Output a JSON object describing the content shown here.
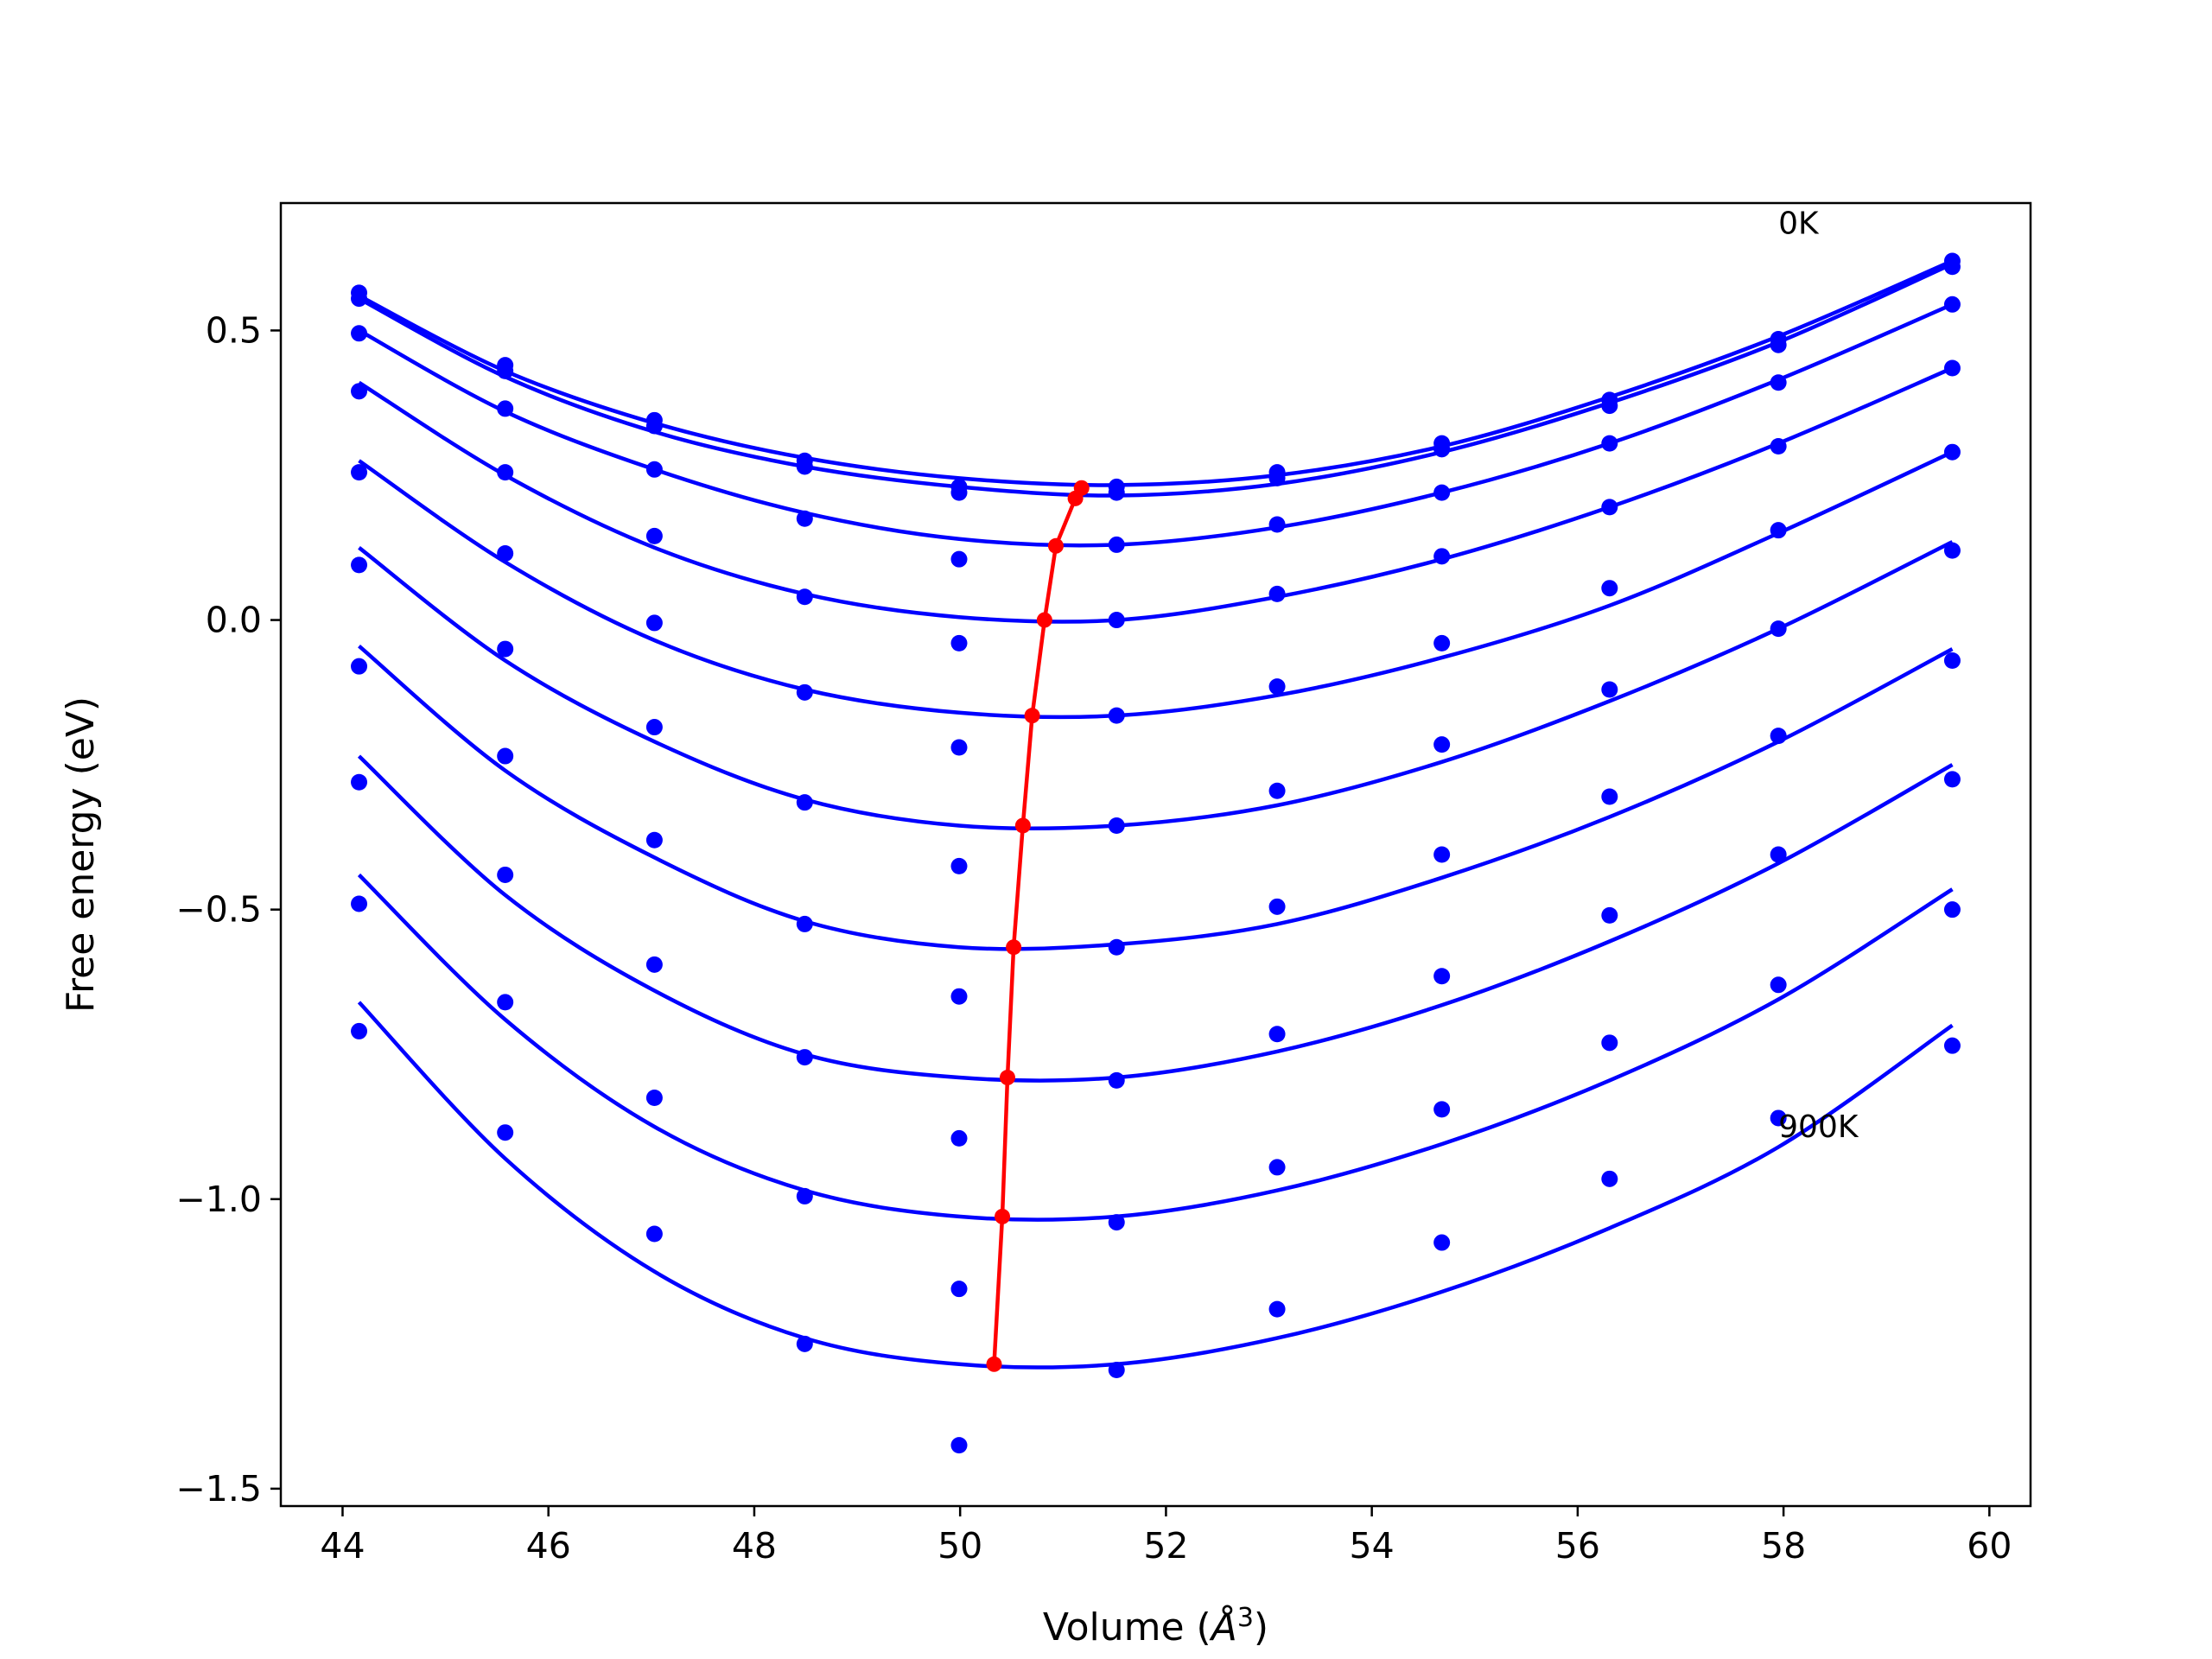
{
  "chart_data": {
    "type": "line",
    "xlabel_prefix": "Volume (",
    "xlabel_symbol": "Å",
    "xlabel_exponent": "3",
    "xlabel_suffix": ")",
    "ylabel": "Free energy (eV)",
    "xlim": [
      43.4,
      60.4
    ],
    "ylim": [
      -1.53,
      0.72
    ],
    "xticks": [
      44,
      46,
      48,
      50,
      52,
      54,
      56,
      58,
      60
    ],
    "xtick_labels": [
      "44",
      "46",
      "48",
      "50",
      "52",
      "54",
      "56",
      "58",
      "60"
    ],
    "yticks": [
      -1.5,
      -1.0,
      -0.5,
      0.0,
      0.5
    ],
    "ytick_labels": [
      "−1.5",
      "−1.0",
      "−0.5",
      "0.0",
      "0.5"
    ],
    "annotations": [
      {
        "text": "0K",
        "x": 57.95,
        "y": 0.685
      },
      {
        "text": "900K",
        "x": 57.95,
        "y": -0.875
      }
    ],
    "colors": {
      "curves": "#0000ff",
      "minima": "#ff0000",
      "axes": "#000000"
    },
    "volumes": [
      44.16,
      45.58,
      47.03,
      48.49,
      49.99,
      51.52,
      53.08,
      54.68,
      56.31,
      57.95,
      59.64
    ],
    "series": [
      {
        "points": [
          0.565,
          0.44,
          0.345,
          0.275,
          0.23,
          0.23,
          0.255,
          0.305,
          0.38,
          0.485,
          0.62
        ],
        "fit": [
          0.56,
          0.43,
          0.34,
          0.28,
          0.245,
          0.233,
          0.25,
          0.3,
          0.385,
          0.49,
          0.62
        ]
      },
      {
        "points": [
          0.555,
          0.43,
          0.335,
          0.265,
          0.22,
          0.22,
          0.245,
          0.295,
          0.37,
          0.475,
          0.61
        ],
        "fit": [
          0.555,
          0.42,
          0.325,
          0.265,
          0.23,
          0.215,
          0.235,
          0.29,
          0.375,
          0.48,
          0.615
        ]
      },
      {
        "points": [
          0.495,
          0.365,
          0.26,
          0.175,
          0.105,
          0.13,
          0.165,
          0.22,
          0.305,
          0.41,
          0.545
        ],
        "fit": [
          0.5,
          0.36,
          0.26,
          0.185,
          0.14,
          0.13,
          0.16,
          0.22,
          0.305,
          0.415,
          0.545
        ]
      },
      {
        "points": [
          0.395,
          0.255,
          0.145,
          0.04,
          -0.04,
          0.0,
          0.045,
          0.11,
          0.195,
          0.3,
          0.435
        ],
        "fit": [
          0.41,
          0.25,
          0.125,
          0.045,
          0.005,
          0.0,
          0.04,
          0.105,
          0.195,
          0.305,
          0.435
        ]
      },
      {
        "points": [
          0.255,
          0.115,
          -0.005,
          -0.125,
          -0.22,
          -0.165,
          -0.115,
          -0.04,
          0.055,
          0.155,
          0.29
        ],
        "fit": [
          0.275,
          0.1,
          -0.035,
          -0.12,
          -0.16,
          -0.165,
          -0.13,
          -0.065,
          0.025,
          0.15,
          0.29
        ]
      },
      {
        "points": [
          0.095,
          -0.05,
          -0.185,
          -0.315,
          -0.425,
          -0.355,
          -0.295,
          -0.215,
          -0.12,
          -0.015,
          0.12
        ],
        "fit": [
          0.125,
          -0.07,
          -0.21,
          -0.31,
          -0.355,
          -0.355,
          -0.32,
          -0.245,
          -0.14,
          -0.015,
          0.135
        ]
      },
      {
        "points": [
          -0.08,
          -0.235,
          -0.38,
          -0.525,
          -0.65,
          -0.565,
          -0.495,
          -0.405,
          -0.305,
          -0.2,
          -0.07
        ],
        "fit": [
          -0.045,
          -0.26,
          -0.41,
          -0.52,
          -0.565,
          -0.56,
          -0.525,
          -0.445,
          -0.34,
          -0.21,
          -0.05
        ]
      },
      {
        "points": [
          -0.28,
          -0.44,
          -0.595,
          -0.755,
          -0.895,
          -0.795,
          -0.715,
          -0.615,
          -0.51,
          -0.405,
          -0.275
        ],
        "fit": [
          -0.235,
          -0.475,
          -0.64,
          -0.75,
          -0.79,
          -0.79,
          -0.745,
          -0.665,
          -0.555,
          -0.42,
          -0.25
        ]
      },
      {
        "points": [
          -0.49,
          -0.66,
          -0.825,
          -0.995,
          -1.155,
          -1.04,
          -0.945,
          -0.845,
          -0.73,
          -0.63,
          -0.5
        ],
        "fit": [
          -0.44,
          -0.69,
          -0.875,
          -0.985,
          -1.03,
          -1.03,
          -0.985,
          -0.905,
          -0.795,
          -0.655,
          -0.465
        ]
      },
      {
        "points": [
          -0.71,
          -0.885,
          -1.06,
          -1.25,
          -1.425,
          -1.295,
          -1.19,
          -1.075,
          -0.965,
          -0.86,
          -0.735
        ],
        "fit": [
          -0.66,
          -0.93,
          -1.125,
          -1.24,
          -1.285,
          -1.285,
          -1.24,
          -1.16,
          -1.05,
          -0.91,
          -0.7
        ]
      }
    ],
    "minima": {
      "x": [
        51.18,
        51.12,
        50.93,
        50.82,
        50.7,
        50.61,
        50.52,
        50.46,
        50.41,
        50.33
      ],
      "y": [
        0.228,
        0.21,
        0.128,
        0.0,
        -0.165,
        -0.355,
        -0.565,
        -0.79,
        -1.03,
        -1.285
      ]
    }
  }
}
